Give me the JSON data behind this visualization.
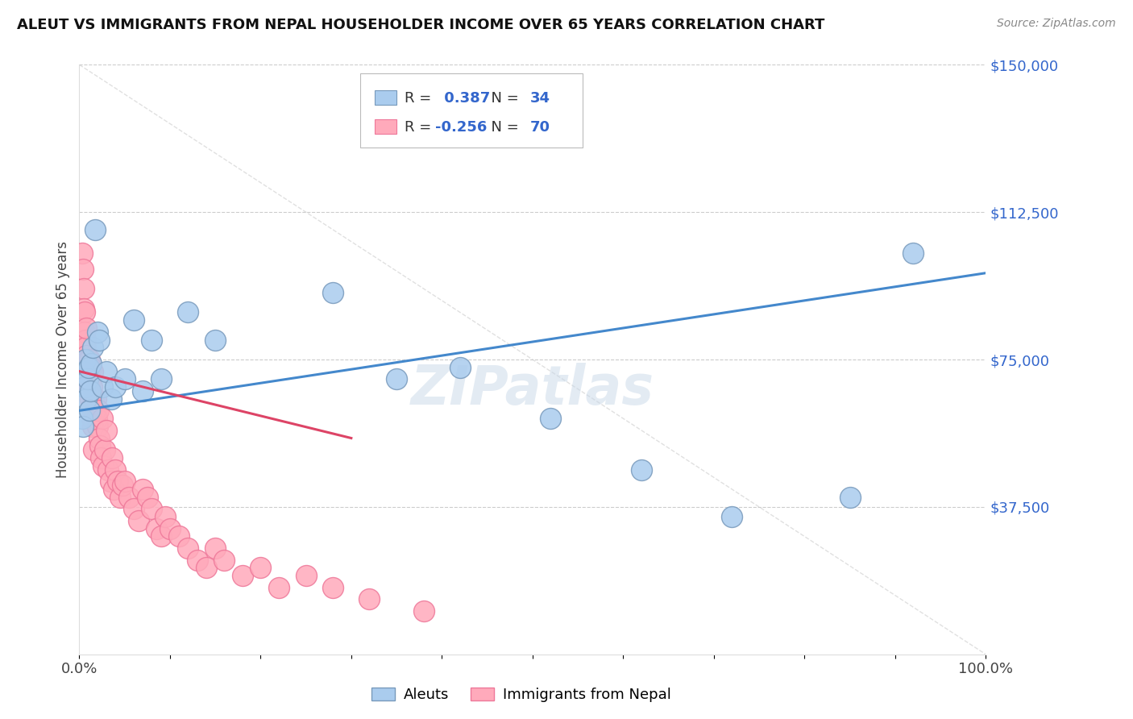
{
  "title": "ALEUT VS IMMIGRANTS FROM NEPAL HOUSEHOLDER INCOME OVER 65 YEARS CORRELATION CHART",
  "source": "Source: ZipAtlas.com",
  "ylabel": "Householder Income Over 65 years",
  "xlim": [
    0,
    1.0
  ],
  "ylim": [
    0,
    150000
  ],
  "yticks": [
    0,
    37500,
    75000,
    112500,
    150000
  ],
  "ytick_labels": [
    "",
    "$37,500",
    "$75,000",
    "$112,500",
    "$150,000"
  ],
  "background_color": "#ffffff",
  "grid_color": "#cccccc",
  "aleut_color": "#aaccee",
  "aleut_edge_color": "#7799bb",
  "nepal_color": "#ffaabb",
  "nepal_edge_color": "#ee7799",
  "aleut_R": 0.387,
  "aleut_N": 34,
  "nepal_R": -0.256,
  "nepal_N": 70,
  "legend_R_color": "#3366cc",
  "trend_blue": "#4488cc",
  "trend_pink": "#dd4466",
  "watermark_color": "#c8d8e8",
  "aleut_x": [
    0.003,
    0.004,
    0.005,
    0.006,
    0.007,
    0.008,
    0.009,
    0.01,
    0.011,
    0.012,
    0.013,
    0.015,
    0.017,
    0.02,
    0.022,
    0.025,
    0.03,
    0.035,
    0.04,
    0.05,
    0.06,
    0.07,
    0.08,
    0.09,
    0.12,
    0.15,
    0.28,
    0.35,
    0.42,
    0.52,
    0.62,
    0.72,
    0.85,
    0.92
  ],
  "aleut_y": [
    60000,
    58000,
    72000,
    68000,
    75000,
    65000,
    70000,
    73000,
    62000,
    67000,
    74000,
    78000,
    108000,
    82000,
    80000,
    68000,
    72000,
    65000,
    68000,
    70000,
    85000,
    67000,
    80000,
    70000,
    87000,
    80000,
    92000,
    70000,
    73000,
    60000,
    47000,
    35000,
    40000,
    102000
  ],
  "nepal_x": [
    0.003,
    0.004,
    0.005,
    0.005,
    0.006,
    0.006,
    0.007,
    0.007,
    0.008,
    0.008,
    0.009,
    0.009,
    0.01,
    0.01,
    0.011,
    0.011,
    0.012,
    0.012,
    0.013,
    0.013,
    0.014,
    0.014,
    0.015,
    0.015,
    0.016,
    0.016,
    0.017,
    0.018,
    0.019,
    0.02,
    0.021,
    0.022,
    0.023,
    0.024,
    0.025,
    0.026,
    0.028,
    0.03,
    0.032,
    0.034,
    0.036,
    0.038,
    0.04,
    0.042,
    0.045,
    0.048,
    0.05,
    0.055,
    0.06,
    0.065,
    0.07,
    0.075,
    0.08,
    0.085,
    0.09,
    0.095,
    0.1,
    0.11,
    0.12,
    0.13,
    0.14,
    0.15,
    0.16,
    0.18,
    0.2,
    0.22,
    0.25,
    0.28,
    0.32,
    0.38
  ],
  "nepal_y": [
    102000,
    98000,
    93000,
    88000,
    87000,
    82000,
    80000,
    78000,
    83000,
    76000,
    75000,
    73000,
    72000,
    70000,
    75000,
    68000,
    70000,
    65000,
    73000,
    63000,
    68000,
    60000,
    72000,
    58000,
    65000,
    52000,
    62000,
    65000,
    60000,
    58000,
    62000,
    55000,
    53000,
    50000,
    60000,
    48000,
    52000,
    57000,
    47000,
    44000,
    50000,
    42000,
    47000,
    44000,
    40000,
    43000,
    44000,
    40000,
    37000,
    34000,
    42000,
    40000,
    37000,
    32000,
    30000,
    35000,
    32000,
    30000,
    27000,
    24000,
    22000,
    27000,
    24000,
    20000,
    22000,
    17000,
    20000,
    17000,
    14000,
    11000
  ]
}
